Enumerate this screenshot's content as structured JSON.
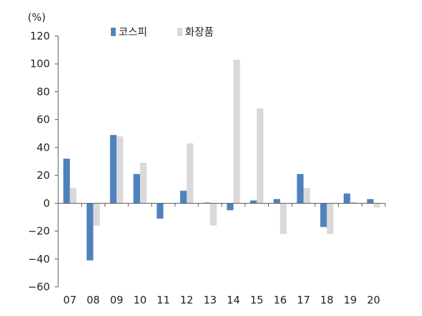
{
  "chart_data": {
    "type": "bar",
    "unit_label": "(%)",
    "categories": [
      "07",
      "08",
      "09",
      "10",
      "11",
      "12",
      "13",
      "14",
      "15",
      "16",
      "17",
      "18",
      "19",
      "20"
    ],
    "series": [
      {
        "name": "코스피",
        "color": "#4f81bd",
        "values": [
          32,
          -41,
          49,
          21,
          -11,
          9,
          0.5,
          -5,
          2,
          3,
          21,
          -17,
          7,
          3
        ]
      },
      {
        "name": "화장품",
        "color": "#d9d9d9",
        "values": [
          11,
          -16,
          48,
          29,
          0,
          43,
          -16,
          103,
          68,
          -22,
          11,
          -22,
          1,
          -3
        ]
      }
    ],
    "y_ticks": [
      "120",
      "100",
      "80",
      "60",
      "40",
      "20",
      "0",
      "-20",
      "-40",
      "-60"
    ],
    "ylim": [
      -60,
      120
    ],
    "legend_position": "top",
    "grid": false
  }
}
